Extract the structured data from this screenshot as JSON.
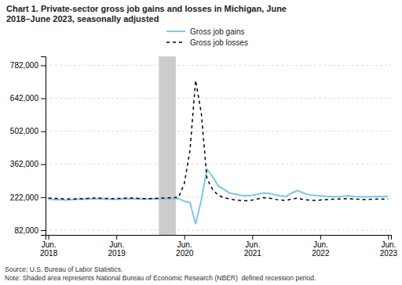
{
  "chart_data": {
    "type": "line",
    "title": "Chart 1. Private-sector gross job gains and losses in Michigan, June\n2018–June 2023, seasonally adjusted",
    "source": "Source: U.S. Bureau of Labor Statistics.\nNote: Shaded area represents National Bureau of Economic Research (NBER)  defined recession period.",
    "categories": [
      "Jun.\n2018",
      null,
      null,
      null,
      null,
      null,
      null,
      null,
      null,
      null,
      null,
      null,
      "Jun.\n2019",
      null,
      null,
      null,
      null,
      null,
      null,
      null,
      null,
      null,
      null,
      null,
      "Jun.\n2020",
      null,
      null,
      null,
      null,
      null,
      null,
      null,
      null,
      null,
      null,
      null,
      "Jun.\n2021",
      null,
      null,
      null,
      null,
      null,
      null,
      null,
      null,
      null,
      null,
      null,
      "Jun.\n2022",
      null,
      null,
      null,
      null,
      null,
      null,
      null,
      null,
      null,
      null,
      null,
      "Jun.\n2023"
    ],
    "series": [
      {
        "name": "Gross job gains",
        "color": "#7EC8E3",
        "line_style": "solid",
        "values": [
          214000,
          212000,
          212000,
          210000,
          211000,
          213000,
          213000,
          214000,
          215000,
          215000,
          214000,
          213000,
          213000,
          214000,
          215000,
          215000,
          214000,
          214000,
          215000,
          216000,
          215000,
          215000,
          215000,
          216000,
          205000,
          200000,
          108000,
          210000,
          340000,
          310000,
          270000,
          255000,
          240000,
          235000,
          230000,
          228000,
          230000,
          235000,
          240000,
          238000,
          232000,
          228000,
          225000,
          240000,
          250000,
          240000,
          232000,
          230000,
          228000,
          226000,
          225000,
          224000,
          226000,
          228000,
          225000,
          224000,
          223000,
          224000,
          225000,
          225000,
          226000
        ]
      },
      {
        "name": "Gross job losses",
        "color": "#000000",
        "line_style": "dashed",
        "values": [
          218000,
          217000,
          216000,
          215000,
          214000,
          215000,
          216000,
          217000,
          218000,
          218000,
          217000,
          216000,
          216000,
          217000,
          218000,
          218000,
          217000,
          216000,
          216000,
          217000,
          218000,
          219000,
          220000,
          222000,
          280000,
          420000,
          718000,
          580000,
          300000,
          255000,
          230000,
          220000,
          215000,
          210000,
          208000,
          207000,
          210000,
          215000,
          220000,
          218000,
          213000,
          210000,
          208000,
          215000,
          218000,
          212000,
          210000,
          208000,
          210000,
          212000,
          213000,
          214000,
          215000,
          216000,
          214000,
          213000,
          212000,
          213000,
          214000,
          214000,
          215000
        ]
      }
    ],
    "recession_shading": {
      "from": 19.5,
      "to": 22.5,
      "color": "#CCCCCC"
    },
    "ylim": [
      62000,
      820000
    ],
    "yticks": [
      {
        "value": 82000,
        "label": "82,000"
      },
      {
        "value": 222000,
        "label": "222,000"
      },
      {
        "value": 362000,
        "label": "362,000"
      },
      {
        "value": 502000,
        "label": "502,000"
      },
      {
        "value": 642000,
        "label": "642,000"
      },
      {
        "value": 782000,
        "label": "782,000"
      }
    ],
    "grid": true,
    "legend": "top"
  }
}
